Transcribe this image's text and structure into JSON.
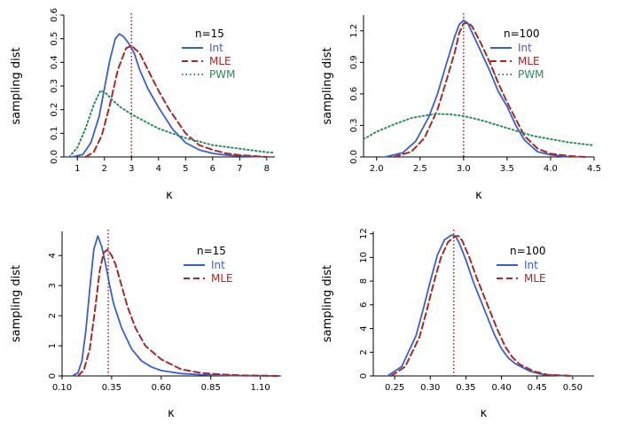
{
  "chart_data": [
    {
      "type": "line",
      "panel": "top-left",
      "legend_title": "n=15",
      "xlabel": "κ",
      "ylabel": "sampling dist",
      "xlim": [
        0.5,
        8.3
      ],
      "ylim": [
        0,
        0.6
      ],
      "xticks": [
        1,
        2,
        3,
        4,
        5,
        6,
        7,
        8
      ],
      "xtick_labels": [
        "1",
        "2",
        "3",
        "4",
        "5",
        "6",
        "7",
        "8"
      ],
      "yticks": [
        0.0,
        0.1,
        0.2,
        0.3,
        0.4,
        0.5,
        0.6
      ],
      "ytick_labels": [
        "0.0",
        "0.1",
        "0.2",
        "0.3",
        "0.4",
        "0.5",
        "0.6"
      ],
      "true_value": 3,
      "series": [
        {
          "name": "Int",
          "color": "#3a5fcd",
          "style": "solid",
          "x": [
            0.8,
            1.2,
            1.5,
            1.8,
            2.0,
            2.2,
            2.4,
            2.55,
            2.7,
            2.9,
            3.1,
            3.3,
            3.6,
            4.0,
            4.5,
            5.0,
            5.5,
            6.0,
            6.5,
            7.0,
            8.0
          ],
          "y": [
            0.0,
            0.01,
            0.06,
            0.17,
            0.29,
            0.41,
            0.5,
            0.52,
            0.51,
            0.48,
            0.44,
            0.37,
            0.29,
            0.21,
            0.12,
            0.06,
            0.03,
            0.015,
            0.008,
            0.004,
            0.0
          ]
        },
        {
          "name": "MLE",
          "color": "#a52a2a",
          "style": "dashed",
          "x": [
            1.3,
            1.6,
            1.9,
            2.2,
            2.5,
            2.8,
            3.0,
            3.3,
            3.6,
            4.0,
            4.4,
            5.0,
            5.5,
            6.0,
            6.5,
            7.0,
            8.0
          ],
          "y": [
            0.0,
            0.02,
            0.09,
            0.22,
            0.37,
            0.46,
            0.47,
            0.44,
            0.37,
            0.28,
            0.2,
            0.1,
            0.05,
            0.03,
            0.015,
            0.008,
            0.0
          ]
        },
        {
          "name": "PWM",
          "color": "#2e8b57",
          "style": "dotted",
          "x": [
            0.7,
            1.0,
            1.3,
            1.6,
            1.85,
            2.05,
            2.3,
            2.6,
            3.0,
            3.5,
            4.0,
            5.0,
            6.0,
            7.0,
            8.0,
            8.3
          ],
          "y": [
            0.0,
            0.04,
            0.12,
            0.22,
            0.28,
            0.27,
            0.24,
            0.21,
            0.18,
            0.15,
            0.12,
            0.08,
            0.05,
            0.035,
            0.02,
            0.018
          ]
        }
      ]
    },
    {
      "type": "line",
      "panel": "top-right",
      "legend_title": "n=100",
      "xlabel": "κ",
      "ylabel": "sampling dist",
      "xlim": [
        1.85,
        4.5
      ],
      "ylim": [
        0,
        1.35
      ],
      "xticks": [
        2.0,
        2.5,
        3.0,
        3.5,
        4.0,
        4.5
      ],
      "xtick_labels": [
        "2.0",
        "2.5",
        "3.0",
        "3.5",
        "4.0",
        "4.5"
      ],
      "yticks": [
        0.0,
        0.3,
        0.6,
        0.9,
        1.2
      ],
      "ytick_labels": [
        "0.0",
        "0.3",
        "0.6",
        "0.9",
        "1.2"
      ],
      "true_value": 3.0,
      "series": [
        {
          "name": "Int",
          "color": "#3a5fcd",
          "style": "solid",
          "x": [
            2.1,
            2.3,
            2.45,
            2.6,
            2.7,
            2.8,
            2.9,
            2.95,
            3.0,
            3.05,
            3.1,
            3.2,
            3.3,
            3.4,
            3.5,
            3.6,
            3.7,
            3.85,
            4.0,
            4.2
          ],
          "y": [
            0.0,
            0.04,
            0.15,
            0.38,
            0.6,
            0.88,
            1.15,
            1.26,
            1.3,
            1.27,
            1.18,
            1.0,
            0.82,
            0.62,
            0.48,
            0.3,
            0.16,
            0.05,
            0.02,
            0.0
          ]
        },
        {
          "name": "MLE",
          "color": "#a52a2a",
          "style": "dashed",
          "x": [
            2.2,
            2.4,
            2.55,
            2.7,
            2.8,
            2.9,
            2.95,
            3.0,
            3.05,
            3.1,
            3.2,
            3.3,
            3.4,
            3.5,
            3.6,
            3.7,
            3.85,
            4.0,
            4.2,
            4.4
          ],
          "y": [
            0.0,
            0.05,
            0.18,
            0.45,
            0.72,
            1.0,
            1.18,
            1.27,
            1.28,
            1.24,
            1.08,
            0.9,
            0.7,
            0.52,
            0.36,
            0.2,
            0.08,
            0.03,
            0.01,
            0.0
          ]
        },
        {
          "name": "PWM",
          "color": "#2e8b57",
          "style": "dotted",
          "x": [
            1.85,
            2.0,
            2.2,
            2.4,
            2.6,
            2.7,
            2.85,
            3.0,
            3.2,
            3.4,
            3.6,
            3.8,
            4.0,
            4.2,
            4.5
          ],
          "y": [
            0.17,
            0.24,
            0.31,
            0.37,
            0.4,
            0.41,
            0.405,
            0.39,
            0.35,
            0.3,
            0.25,
            0.2,
            0.17,
            0.14,
            0.11
          ]
        }
      ]
    },
    {
      "type": "line",
      "panel": "bottom-left",
      "legend_title": "n=15",
      "xlabel": "κ",
      "ylabel": "sampling dist",
      "xlim": [
        0.1,
        1.2
      ],
      "ylim": [
        0,
        4.8
      ],
      "xticks": [
        0.1,
        0.35,
        0.6,
        0.85,
        1.1
      ],
      "xtick_labels": [
        "0.10",
        "0.35",
        "0.60",
        "0.85",
        "1.10"
      ],
      "yticks": [
        0,
        1,
        2,
        3,
        4
      ],
      "ytick_labels": [
        "0",
        "1",
        "2",
        "3",
        "4"
      ],
      "true_value": 0.333,
      "series": [
        {
          "name": "Int",
          "color": "#3a5fcd",
          "style": "solid",
          "x": [
            0.15,
            0.18,
            0.2,
            0.22,
            0.24,
            0.26,
            0.28,
            0.3,
            0.32,
            0.34,
            0.36,
            0.4,
            0.45,
            0.5,
            0.55,
            0.6,
            0.7,
            0.8,
            0.9,
            1.0,
            1.2
          ],
          "y": [
            0.0,
            0.1,
            0.5,
            1.5,
            2.9,
            4.2,
            4.65,
            4.3,
            3.7,
            3.0,
            2.4,
            1.6,
            0.9,
            0.5,
            0.3,
            0.18,
            0.08,
            0.04,
            0.02,
            0.01,
            0.0
          ]
        },
        {
          "name": "MLE",
          "color": "#a52a2a",
          "style": "dashed",
          "x": [
            0.18,
            0.21,
            0.24,
            0.27,
            0.29,
            0.31,
            0.33,
            0.35,
            0.37,
            0.4,
            0.43,
            0.47,
            0.52,
            0.6,
            0.7,
            0.8,
            0.9,
            1.0,
            1.2
          ],
          "y": [
            0.0,
            0.2,
            0.9,
            2.4,
            3.5,
            4.1,
            4.2,
            4.0,
            3.7,
            3.0,
            2.3,
            1.6,
            1.0,
            0.55,
            0.22,
            0.1,
            0.05,
            0.02,
            0.0
          ]
        }
      ]
    },
    {
      "type": "line",
      "panel": "bottom-right",
      "legend_title": "n=100",
      "xlabel": "κ",
      "ylabel": "sampling dist",
      "xlim": [
        0.22,
        0.53
      ],
      "ylim": [
        0,
        12.2
      ],
      "xticks": [
        0.25,
        0.3,
        0.35,
        0.4,
        0.45,
        0.5
      ],
      "xtick_labels": [
        "0.25",
        "0.30",
        "0.35",
        "0.40",
        "0.45",
        "0.50"
      ],
      "yticks": [
        0,
        2,
        4,
        6,
        8,
        10,
        12
      ],
      "ytick_labels": [
        "0",
        "2",
        "4",
        "6",
        "8",
        "10",
        "12"
      ],
      "true_value": 0.333,
      "series": [
        {
          "name": "Int",
          "color": "#3a5fcd",
          "style": "solid",
          "x": [
            0.24,
            0.26,
            0.28,
            0.29,
            0.3,
            0.31,
            0.32,
            0.33,
            0.335,
            0.34,
            0.35,
            0.36,
            0.37,
            0.38,
            0.39,
            0.4,
            0.41,
            0.42,
            0.44,
            0.46,
            0.5
          ],
          "y": [
            0.0,
            0.8,
            3.4,
            5.6,
            8.0,
            10.2,
            11.5,
            11.9,
            11.8,
            11.3,
            9.8,
            8.0,
            6.5,
            5.0,
            3.5,
            2.3,
            1.5,
            1.0,
            0.4,
            0.1,
            0.0
          ]
        },
        {
          "name": "MLE",
          "color": "#a52a2a",
          "style": "dashed",
          "x": [
            0.245,
            0.265,
            0.285,
            0.295,
            0.305,
            0.315,
            0.325,
            0.335,
            0.34,
            0.345,
            0.355,
            0.365,
            0.375,
            0.385,
            0.395,
            0.405,
            0.415,
            0.425,
            0.445,
            0.465,
            0.5
          ],
          "y": [
            0.0,
            0.8,
            3.3,
            5.5,
            7.9,
            10.0,
            11.3,
            11.8,
            11.8,
            11.4,
            10.0,
            8.3,
            6.8,
            5.3,
            3.8,
            2.5,
            1.6,
            1.0,
            0.4,
            0.1,
            0.0
          ]
        }
      ]
    }
  ]
}
